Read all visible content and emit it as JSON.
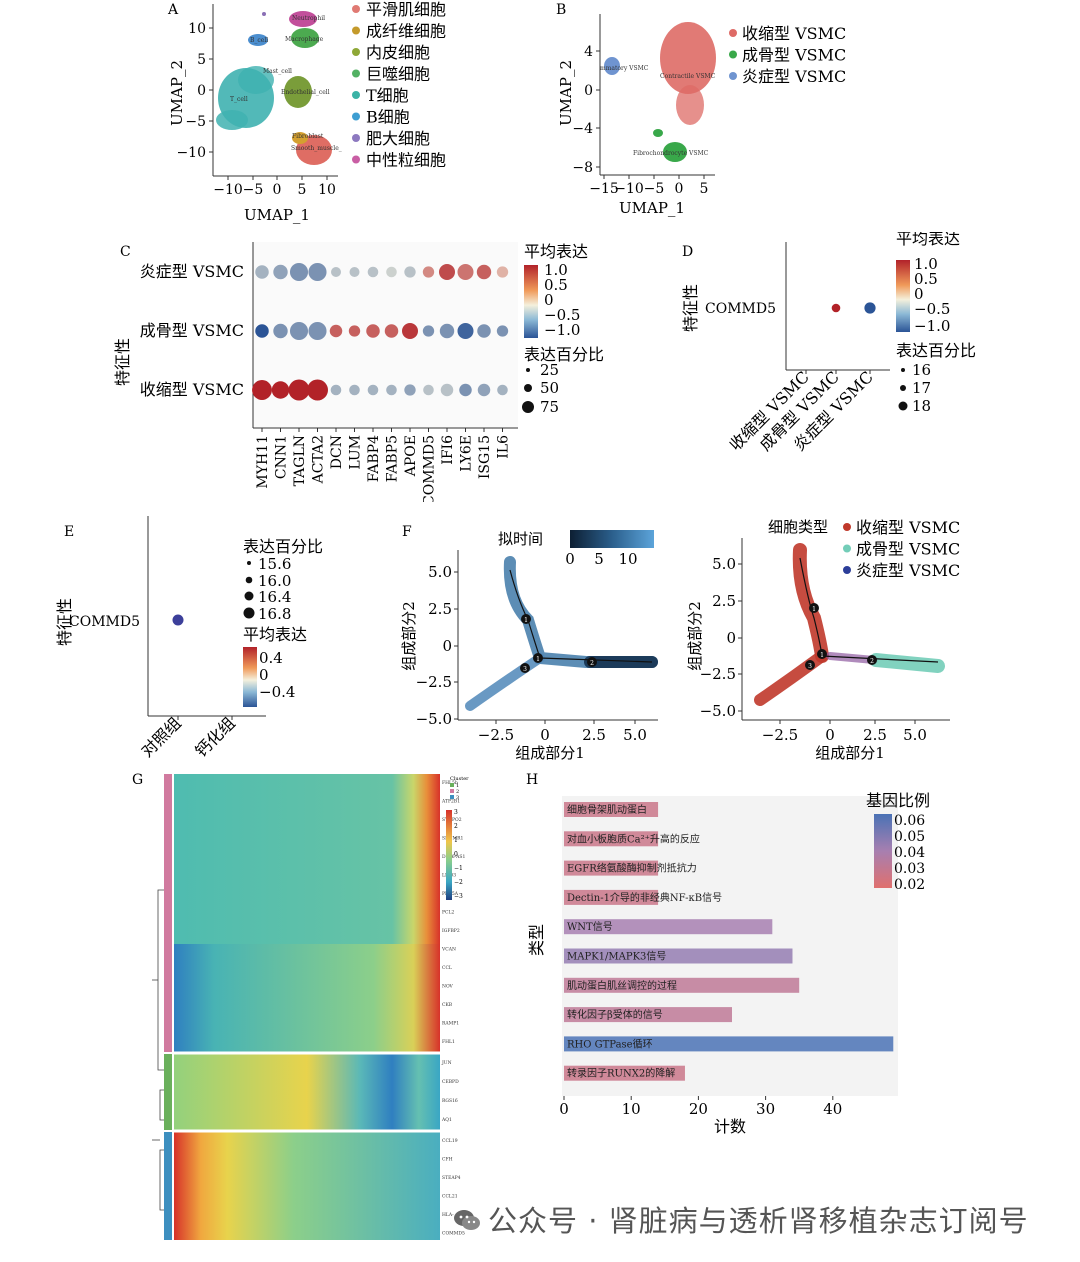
{
  "panels": {
    "A": {
      "letter": "A",
      "xlabel": "UMAP_1",
      "ylabel": "UMAP_2",
      "xticks": [
        "−10",
        "−5",
        "0",
        "5",
        "10"
      ],
      "yticks": [
        "10",
        "5",
        "0",
        "−5",
        "−10"
      ],
      "clusters": [
        {
          "label": "Neutrophil",
          "color": "#c24f9b"
        },
        {
          "label": "Macrophage",
          "color": "#4caa50"
        },
        {
          "label": "B_cell",
          "color": "#4b8ecf"
        },
        {
          "label": "Mast_cell",
          "color": "#8a6fb5"
        },
        {
          "label": "T_cell",
          "color": "#3fb1b0"
        },
        {
          "label": "Endothelial_cell",
          "color": "#7a9d3a"
        },
        {
          "label": "Fibroblast",
          "color": "#d4a030"
        },
        {
          "label": "Smooth_muscle_",
          "color": "#df6d64"
        }
      ],
      "legend": [
        {
          "label": "平滑肌细胞",
          "color": "#e07a73"
        },
        {
          "label": "成纤维细胞",
          "color": "#c49a2b"
        },
        {
          "label": "内皮细胞",
          "color": "#8ea837"
        },
        {
          "label": "巨噬细胞",
          "color": "#52b163"
        },
        {
          "label": "T细胞",
          "color": "#3bb3a6"
        },
        {
          "label": "B细胞",
          "color": "#3d9ed2"
        },
        {
          "label": "肥大细胞",
          "color": "#8d79c0"
        },
        {
          "label": "中性粒细胞",
          "color": "#c95ea4"
        }
      ]
    },
    "B": {
      "letter": "B",
      "xlabel": "UMAP_1",
      "ylabel": "UMAP_2",
      "xticks": [
        "−15",
        "−10",
        "−5",
        "0",
        "5"
      ],
      "yticks": [
        "4",
        "0",
        "−4",
        "−8"
      ],
      "clusters": [
        {
          "label": "mmatory VSMC"
        },
        {
          "label": "Contractile VSMC"
        },
        {
          "label": "Fibrochondrocyte VSMC"
        }
      ],
      "legend": [
        {
          "label": "收缩型 VSMC",
          "color": "#de6b66"
        },
        {
          "label": "成骨型 VSMC",
          "color": "#39a84a"
        },
        {
          "label": "炎症型 VSMC",
          "color": "#6f94d0"
        }
      ]
    },
    "C": {
      "letter": "C",
      "ylabel": "特征性",
      "legend_expr_title": "平均表达",
      "legend_expr_ticks": [
        "1.0",
        "0.5",
        "0",
        "−0.5",
        "−1.0"
      ],
      "legend_pct_title": "表达百分比",
      "legend_pct_ticks": [
        "25",
        "50",
        "75"
      ]
    },
    "D": {
      "letter": "D",
      "ylabel": "特征性",
      "legend_expr_title": "平均表达",
      "legend_expr_ticks": [
        "1.0",
        "0.5",
        "0",
        "−0.5",
        "−1.0"
      ],
      "legend_pct_title": "表达百分比",
      "legend_pct_ticks": [
        "16",
        "17",
        "18"
      ]
    },
    "E": {
      "letter": "E",
      "ylabel": "特征性",
      "legend_pct_title": "表达百分比",
      "legend_pct_ticks": [
        "15.6",
        "16.0",
        "16.4",
        "16.8"
      ],
      "legend_expr_title": "平均表达",
      "legend_expr_ticks": [
        "0.4",
        "0",
        "−0.4"
      ]
    },
    "F": {
      "letter": "F",
      "left": {
        "legend_title": "拟时间",
        "legend_ticks": [
          "0",
          "5",
          "10"
        ],
        "xlabel": "组成部分1",
        "ylabel": "组成部分2",
        "xticks": [
          "−2.5",
          "0",
          "2.5",
          "5.0"
        ],
        "yticks": [
          "5.0",
          "2.5",
          "0",
          "−2.5",
          "−5.0"
        ],
        "nodes": [
          "1",
          "1",
          "2",
          "3"
        ]
      },
      "right": {
        "legend_title": "细胞类型",
        "legend": [
          {
            "label": "收缩型 VSMC",
            "color": "#c0392b"
          },
          {
            "label": "成骨型 VSMC",
            "color": "#73cdb8"
          },
          {
            "label": "炎症型 VSMC",
            "color": "#2c3e99"
          }
        ],
        "xlabel": "组成部分1",
        "ylabel": "组成部分2",
        "xticks": [
          "−2.5",
          "0",
          "2.5",
          "5.0"
        ],
        "yticks": [
          "5.0",
          "2.5",
          "0",
          "−2.5",
          "−5.0"
        ],
        "nodes": [
          "1",
          "1",
          "2",
          "3"
        ]
      }
    },
    "G": {
      "letter": "G",
      "genes": [
        "FHL5b",
        "ATP2B1",
        "SYNPO2",
        "SNCMR1",
        "DLX6-AS1",
        "LMO3",
        "PDE5A",
        "PCL2",
        "IGFBP2",
        "VCAN",
        "CCL",
        "NOV",
        "CKB",
        "RAMP1",
        "FHL1",
        "JUN",
        "CEBPD",
        "RGS16",
        "AQ1",
        "CCL19",
        "CFH",
        "STEAP4",
        "CCL21",
        "HLA-",
        "COMMD5"
      ],
      "legend_title": "Cluster",
      "cluster_labels": [
        "1",
        "2",
        "3"
      ],
      "cluster_colors": [
        "#6ab05c",
        "#d17a9f",
        "#3d8fbf"
      ],
      "scale_ticks": [
        "3",
        "2",
        "1",
        "0",
        "−1",
        "−2",
        "−3"
      ]
    },
    "H": {
      "letter": "H",
      "xlabel": "计数",
      "ylabel": "类型",
      "legend_title": "基因比例",
      "legend_ticks": [
        "0.06",
        "0.05",
        "0.04",
        "0.03",
        "0.02"
      ],
      "xticks": [
        "0",
        "10",
        "20",
        "30",
        "40"
      ]
    }
  },
  "chart_data": [
    {
      "panel": "C",
      "type": "scatter",
      "subtype": "dotplot",
      "genes": [
        "MYH11",
        "CNN1",
        "TAGLN",
        "ACTA2",
        "DCN",
        "LUM",
        "FABP4",
        "FABP5",
        "APOE",
        "COMMD5",
        "IFI6",
        "LY6E",
        "ISG15",
        "IL6"
      ],
      "groups": [
        "炎症型 VSMC",
        "成骨型 VSMC",
        "收缩型 VSMC"
      ],
      "avg_expression": [
        [
          -0.4,
          -0.5,
          -0.6,
          -0.6,
          -0.3,
          -0.3,
          -0.3,
          -0.2,
          -0.3,
          0.5,
          0.8,
          0.6,
          0.7,
          0.3
        ],
        [
          -1.0,
          -0.6,
          -0.6,
          -0.6,
          0.7,
          0.7,
          0.7,
          0.7,
          0.9,
          -0.6,
          -0.6,
          -0.9,
          -0.6,
          -0.6
        ],
        [
          1.0,
          1.0,
          1.0,
          1.0,
          -0.4,
          -0.4,
          -0.4,
          -0.4,
          -0.5,
          -0.3,
          -0.3,
          -0.6,
          -0.5,
          -0.4
        ]
      ],
      "pct_expression": [
        [
          25,
          30,
          55,
          55,
          10,
          10,
          12,
          12,
          15,
          15,
          40,
          40,
          30,
          15
        ],
        [
          25,
          30,
          55,
          55,
          20,
          15,
          25,
          25,
          40,
          15,
          30,
          40,
          25,
          15
        ],
        [
          70,
          50,
          80,
          80,
          12,
          12,
          12,
          12,
          15,
          12,
          20,
          20,
          20,
          12
        ]
      ],
      "legend_expr_range": [
        -1.0,
        1.0
      ]
    },
    {
      "panel": "D",
      "type": "scatter",
      "subtype": "dotplot",
      "genes": [
        "COMMD5"
      ],
      "groups": [
        "收缩型 VSMC",
        "成骨型 VSMC",
        "炎症型 VSMC"
      ],
      "avg_expression": [
        [
          null,
          1.0,
          -1.0
        ]
      ],
      "pct_expression": [
        [
          null,
          17,
          18
        ]
      ]
    },
    {
      "panel": "E",
      "type": "scatter",
      "subtype": "dotplot",
      "genes": [
        "COMMD5"
      ],
      "groups": [
        "对照组",
        "钙化组"
      ],
      "avg_expression": [
        [
          -0.4,
          null
        ]
      ],
      "pct_expression": [
        [
          16.4,
          null
        ]
      ]
    },
    {
      "panel": "H",
      "type": "bar",
      "orientation": "horizontal",
      "categories": [
        "细胞骨架肌动蛋白",
        "对血小板胞质Ca²⁺升高的反应",
        "EGFR络氨酸酶抑制剂抵抗力",
        "Dectin-1介导的非经典NF-κB信号",
        "WNT信号",
        "MAPK1/MAPK3信号",
        "肌动蛋白肌丝调控的过程",
        "转化因子β受体的信号",
        "RHO GTPase循环",
        "转录因子RUNX2的降解"
      ],
      "values": [
        14,
        14,
        14,
        14,
        31,
        34,
        35,
        25,
        49,
        18
      ],
      "gene_ratio": [
        0.025,
        0.025,
        0.025,
        0.025,
        0.04,
        0.045,
        0.03,
        0.03,
        0.065,
        0.025
      ],
      "xlim": [
        0,
        50
      ]
    }
  ],
  "watermark": {
    "text": "公众号 · 肾脏病与透析肾移植杂志订阅号"
  }
}
